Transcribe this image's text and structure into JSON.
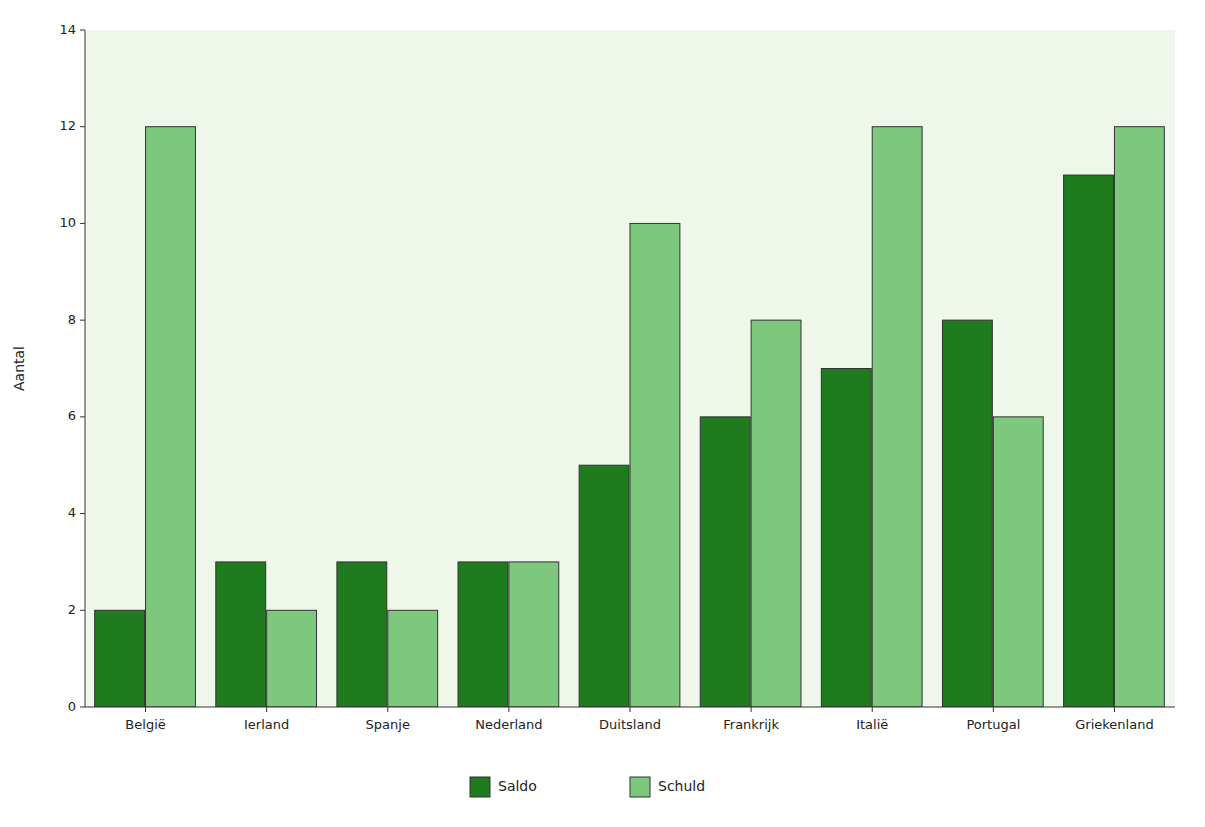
{
  "chart_data": {
    "type": "bar",
    "categories": [
      "België",
      "Ierland",
      "Spanje",
      "Nederland",
      "Duitsland",
      "Frankrijk",
      "Italië",
      "Portugal",
      "Griekenland"
    ],
    "series": [
      {
        "name": "Saldo",
        "color": "#1e7b1e",
        "values": [
          2,
          3,
          3,
          3,
          5,
          6,
          7,
          8,
          11
        ]
      },
      {
        "name": "Schuld",
        "color": "#7dc87d",
        "values": [
          12,
          2,
          2,
          3,
          10,
          8,
          12,
          6,
          12
        ]
      }
    ],
    "y_label": "Aantal",
    "ylim": [
      0,
      14
    ],
    "yticks": [
      0,
      2,
      4,
      6,
      8,
      10,
      12,
      14
    ],
    "grid": false,
    "legend": "bottom"
  }
}
